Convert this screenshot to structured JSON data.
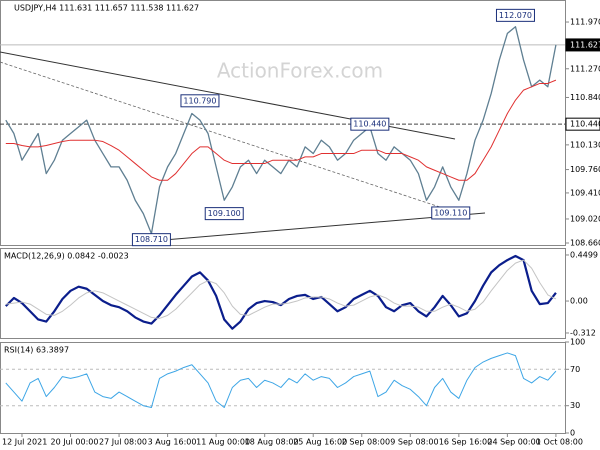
{
  "chart_data": [
    {
      "type": "line",
      "title": "USDJPY,H4 111.631 111.657 111.538 111.627",
      "watermark": "ActionForex.com",
      "ylim": [
        108.63,
        112.3
      ],
      "yticks": [
        {
          "value": 111.97,
          "label": "111.970"
        },
        {
          "value": 111.27,
          "label": "111.270"
        },
        {
          "value": 110.84,
          "label": "110.840"
        },
        {
          "value": 110.13,
          "label": "110.130"
        },
        {
          "value": 109.76,
          "label": "109.760"
        },
        {
          "value": 109.41,
          "label": "109.410"
        },
        {
          "value": 109.02,
          "label": "109.020"
        },
        {
          "value": 108.66,
          "label": "108.660"
        }
      ],
      "markers": [
        {
          "value": 111.627,
          "label": "111.627"
        },
        {
          "value": 110.44,
          "label": "110.440"
        }
      ],
      "annotations": [
        {
          "index": 63,
          "value": 112.07,
          "label": "112.070"
        },
        {
          "index": 24,
          "value": 110.79,
          "label": "110.790"
        },
        {
          "index": 45,
          "value": 110.44,
          "label": "110.440"
        },
        {
          "index": 27,
          "value": 109.1,
          "label": "109.100"
        },
        {
          "index": 18,
          "value": 108.71,
          "label": "108.710"
        },
        {
          "index": 55,
          "value": 109.11,
          "label": "109.110"
        }
      ],
      "series": [
        {
          "name": "USDJPY",
          "color": "#5f7f92",
          "width": 1.3,
          "values": [
            110.5,
            110.3,
            109.9,
            110.1,
            110.3,
            109.7,
            109.9,
            110.2,
            110.3,
            110.4,
            110.5,
            110.2,
            110.0,
            109.8,
            109.8,
            109.6,
            109.3,
            109.1,
            108.8,
            109.5,
            109.8,
            110.0,
            110.3,
            110.6,
            110.5,
            110.3,
            109.8,
            109.3,
            109.5,
            109.8,
            109.9,
            109.7,
            109.9,
            109.8,
            109.7,
            109.9,
            109.8,
            110.1,
            110.0,
            110.2,
            110.1,
            109.9,
            110.0,
            110.2,
            110.3,
            110.4,
            110.0,
            109.9,
            110.1,
            110.0,
            109.9,
            109.7,
            109.3,
            109.5,
            109.8,
            109.5,
            109.3,
            109.7,
            110.2,
            110.5,
            110.9,
            111.4,
            111.8,
            111.9,
            111.4,
            111.0,
            111.1,
            111.0,
            111.627
          ]
        },
        {
          "name": "MA",
          "color": "#e03030",
          "width": 1,
          "values": [
            110.15,
            110.15,
            110.12,
            110.1,
            110.1,
            110.12,
            110.15,
            110.18,
            110.2,
            110.2,
            110.2,
            110.2,
            110.18,
            110.12,
            110.05,
            109.95,
            109.85,
            109.75,
            109.65,
            109.6,
            109.6,
            109.7,
            109.85,
            110.0,
            110.1,
            110.1,
            110.0,
            109.9,
            109.85,
            109.85,
            109.85,
            109.85,
            109.85,
            109.9,
            109.9,
            109.9,
            109.9,
            109.95,
            109.95,
            110.0,
            110.0,
            110.0,
            110.0,
            110.0,
            110.05,
            110.05,
            110.05,
            110.0,
            110.0,
            110.0,
            109.95,
            109.9,
            109.8,
            109.75,
            109.7,
            109.65,
            109.6,
            109.6,
            109.7,
            109.9,
            110.1,
            110.35,
            110.6,
            110.8,
            110.95,
            111.0,
            111.05,
            111.05,
            111.1
          ]
        }
      ]
    },
    {
      "type": "line",
      "title": "MACD(12,26,9) 0.0842 -0.0023",
      "ylim": [
        -0.361,
        0.518
      ],
      "yticks": [
        0.4499,
        {
          "value": 0,
          "label": "0.00"
        },
        -0.312
      ],
      "series": [
        {
          "name": "MACD",
          "color": "#0b1e8c",
          "width": 2.2,
          "values": [
            -0.05,
            0.03,
            -0.02,
            -0.1,
            -0.18,
            -0.2,
            -0.1,
            0.02,
            0.1,
            0.14,
            0.12,
            0.06,
            0.0,
            -0.04,
            -0.06,
            -0.1,
            -0.16,
            -0.2,
            -0.22,
            -0.14,
            -0.04,
            0.06,
            0.15,
            0.24,
            0.28,
            0.2,
            0.05,
            -0.18,
            -0.27,
            -0.2,
            -0.08,
            -0.02,
            0.0,
            -0.01,
            -0.04,
            0.02,
            0.05,
            0.06,
            0.02,
            0.04,
            -0.03,
            -0.1,
            -0.06,
            0.02,
            0.06,
            0.1,
            0.05,
            -0.06,
            -0.1,
            -0.04,
            -0.02,
            -0.1,
            -0.15,
            -0.06,
            0.05,
            -0.04,
            -0.15,
            -0.12,
            0.0,
            0.15,
            0.28,
            0.35,
            0.4,
            0.44,
            0.4,
            0.1,
            -0.03,
            -0.02,
            0.08
          ]
        },
        {
          "name": "Signal",
          "color": "#c4c4c4",
          "width": 1,
          "values": [
            -0.03,
            -0.02,
            -0.01,
            -0.03,
            -0.08,
            -0.13,
            -0.14,
            -0.1,
            -0.04,
            0.03,
            0.08,
            0.1,
            0.08,
            0.04,
            0.0,
            -0.04,
            -0.08,
            -0.12,
            -0.16,
            -0.17,
            -0.14,
            -0.08,
            0.0,
            0.08,
            0.16,
            0.2,
            0.17,
            0.08,
            -0.05,
            -0.13,
            -0.14,
            -0.1,
            -0.06,
            -0.03,
            -0.03,
            -0.02,
            0.0,
            0.03,
            0.04,
            0.04,
            0.02,
            -0.02,
            -0.05,
            -0.04,
            0.0,
            0.04,
            0.06,
            0.03,
            -0.02,
            -0.05,
            -0.05,
            -0.06,
            -0.1,
            -0.1,
            -0.06,
            -0.03,
            -0.06,
            -0.1,
            -0.08,
            -0.01,
            0.1,
            0.2,
            0.3,
            0.37,
            0.4,
            0.32,
            0.18,
            0.06,
            0.02
          ]
        }
      ]
    },
    {
      "type": "line",
      "title": "RSI(14) 63.3897",
      "ylim": [
        0,
        100
      ],
      "yticks": [
        100,
        70,
        30,
        0
      ],
      "levels": [
        70,
        30
      ],
      "categories": [
        null,
        null,
        "12 Jul 2021",
        null,
        null,
        null,
        null,
        null,
        "20 Jul 00:00",
        null,
        null,
        null,
        null,
        null,
        "27 Jul 08:00",
        null,
        null,
        null,
        null,
        null,
        "3 Aug 16:00",
        null,
        null,
        null,
        null,
        null,
        "11 Aug 00:00",
        null,
        null,
        null,
        null,
        null,
        "18 Aug 08:00",
        null,
        null,
        null,
        null,
        null,
        "25 Aug 16:00",
        null,
        null,
        null,
        null,
        null,
        "2 Sep 08:00",
        null,
        null,
        null,
        null,
        null,
        "9 Sep 08:00",
        null,
        null,
        null,
        null,
        null,
        "16 Sep 16:00",
        null,
        null,
        null,
        null,
        null,
        "24 Sep 00:00",
        null,
        null,
        null,
        null,
        null,
        "1 Oct 08:00"
      ],
      "series": [
        {
          "name": "RSI",
          "color": "#3ea6e6",
          "width": 1,
          "values": [
            55,
            45,
            35,
            55,
            60,
            40,
            50,
            62,
            60,
            62,
            65,
            45,
            40,
            38,
            45,
            40,
            35,
            30,
            28,
            60,
            65,
            68,
            72,
            75,
            65,
            55,
            35,
            28,
            50,
            58,
            60,
            50,
            58,
            55,
            50,
            60,
            55,
            65,
            58,
            62,
            60,
            50,
            55,
            62,
            65,
            68,
            40,
            45,
            58,
            52,
            48,
            40,
            30,
            50,
            60,
            45,
            38,
            58,
            72,
            78,
            82,
            85,
            88,
            85,
            60,
            55,
            62,
            58,
            68
          ]
        }
      ]
    }
  ]
}
